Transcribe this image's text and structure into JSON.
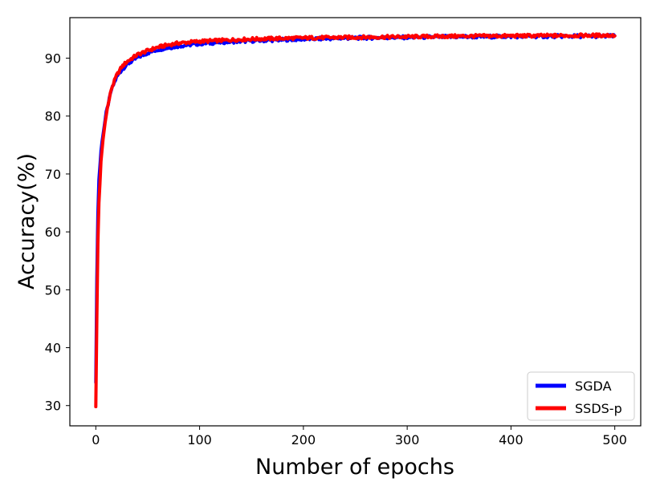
{
  "chart_data": {
    "type": "line",
    "xlabel": "Number of epochs",
    "ylabel": "Accuracy(%)",
    "xlim": [
      -25,
      525
    ],
    "ylim": [
      26.5,
      97
    ],
    "xticks": [
      0,
      100,
      200,
      300,
      400,
      500
    ],
    "yticks": [
      30,
      40,
      50,
      60,
      70,
      80,
      90
    ],
    "grid": false,
    "legend_position": "lower right",
    "series": [
      {
        "name": "SGDA",
        "color": "#0000ff",
        "x": [
          0,
          1,
          2,
          3,
          5,
          7,
          10,
          15,
          20,
          25,
          30,
          40,
          50,
          60,
          70,
          80,
          100,
          125,
          150,
          200,
          250,
          300,
          350,
          400,
          450,
          500
        ],
        "y": [
          34,
          52,
          63,
          69,
          74,
          77,
          80.5,
          84.5,
          86.7,
          88.0,
          88.9,
          90.1,
          90.9,
          91.5,
          91.8,
          92.1,
          92.5,
          92.8,
          93.0,
          93.3,
          93.5,
          93.6,
          93.7,
          93.75,
          93.8,
          93.8
        ]
      },
      {
        "name": "SSDS-p",
        "color": "#ff0000",
        "x": [
          0,
          1,
          2,
          3,
          5,
          7,
          10,
          15,
          20,
          25,
          30,
          40,
          50,
          60,
          70,
          80,
          100,
          125,
          150,
          200,
          250,
          300,
          350,
          400,
          450,
          500
        ],
        "y": [
          29.8,
          45,
          58,
          65,
          72,
          76,
          80.3,
          84.7,
          87.0,
          88.5,
          89.4,
          90.6,
          91.3,
          91.9,
          92.3,
          92.6,
          92.9,
          93.1,
          93.3,
          93.5,
          93.6,
          93.7,
          93.8,
          93.85,
          93.9,
          93.95
        ]
      }
    ]
  }
}
